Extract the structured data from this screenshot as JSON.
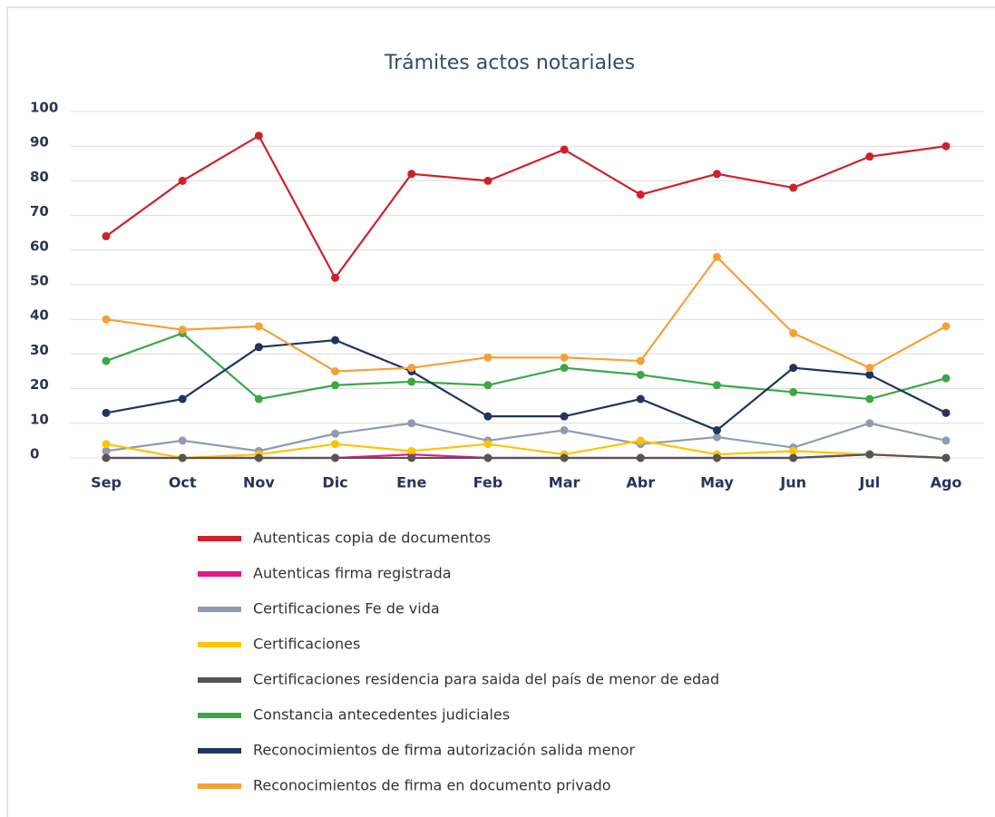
{
  "chart_data": {
    "type": "line",
    "title": "Trámites actos notariales",
    "categories": [
      "Sep",
      "Oct",
      "Nov",
      "Dic",
      "Ene",
      "Feb",
      "Mar",
      "Abr",
      "May",
      "Jun",
      "Jul",
      "Ago"
    ],
    "ylim": [
      0,
      100
    ],
    "yticks": [
      0,
      10,
      20,
      30,
      40,
      50,
      60,
      70,
      80,
      90,
      100
    ],
    "grid": true,
    "series": [
      {
        "name": "Autenticas copia de documentos",
        "color": "#d0202a",
        "values": [
          64,
          80,
          93,
          52,
          82,
          80,
          89,
          76,
          82,
          78,
          87,
          90
        ]
      },
      {
        "name": "Autenticas firma registrada",
        "color": "#e6168a",
        "values": [
          0,
          0,
          0,
          0,
          1,
          0,
          0,
          0,
          0,
          0,
          1,
          0
        ]
      },
      {
        "name": "Certificaciones Fe de vida",
        "color": "#8f9bb3",
        "values": [
          2,
          5,
          2,
          7,
          10,
          5,
          8,
          4,
          6,
          3,
          10,
          5
        ]
      },
      {
        "name": "Certificaciones",
        "color": "#ffc400",
        "values": [
          4,
          0,
          1,
          4,
          2,
          4,
          1,
          5,
          1,
          2,
          1,
          0
        ]
      },
      {
        "name": "Certificaciones residencia para saida del país de menor de edad",
        "color": "#555555",
        "values": [
          0,
          0,
          0,
          0,
          0,
          0,
          0,
          0,
          0,
          0,
          1,
          0
        ]
      },
      {
        "name": "Constancia antecedentes judiciales",
        "color": "#3aa845",
        "values": [
          28,
          36,
          17,
          21,
          22,
          21,
          26,
          24,
          21,
          19,
          17,
          23
        ]
      },
      {
        "name": "Reconocimientos de firma autorización salida menor",
        "color": "#1f3560",
        "values": [
          13,
          17,
          32,
          34,
          25,
          12,
          12,
          17,
          8,
          26,
          24,
          13
        ]
      },
      {
        "name": "Reconocimientos de firma en documento privado",
        "color": "#f7a035",
        "values": [
          40,
          37,
          38,
          25,
          26,
          29,
          29,
          28,
          58,
          36,
          26,
          38
        ]
      }
    ]
  }
}
